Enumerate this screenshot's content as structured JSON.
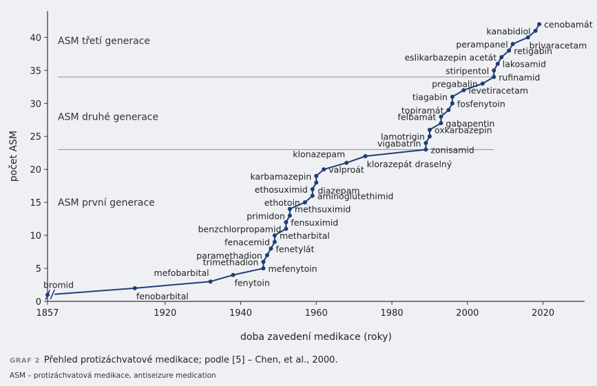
{
  "caption": {
    "label": "GRAF 2",
    "text": "Přehled protizáchvatové medikace; podle [5] – Chen, et al., 2000."
  },
  "note": "ASM – protizáchvatová medikace, antiseizure medication",
  "chart_data": {
    "type": "line",
    "xlabel": "doba zavedení medikace (roky)",
    "ylabel": "počet ASM",
    "xlim": [
      1857,
      2031
    ],
    "ylim": [
      0,
      44
    ],
    "xticks": [
      1857,
      1920,
      1940,
      1960,
      1980,
      2000,
      2020
    ],
    "yticks": [
      0,
      5,
      10,
      15,
      20,
      25,
      30,
      35,
      40
    ],
    "axis_break_after": 1857,
    "grid": false,
    "colors": {
      "line": "#1f3d73",
      "divider": "#8c8c8c",
      "text": "#222222"
    },
    "generations": [
      {
        "label": "ASM první generace",
        "y_text": 15
      },
      {
        "label": "ASM druhé generace",
        "y_text": 28,
        "divider_y": 23
      },
      {
        "label": "ASM třetí generace",
        "y_text": 39.5,
        "divider_y": 34
      }
    ],
    "points": [
      {
        "name": "bromid",
        "x": 1857,
        "y": 1,
        "side": "above"
      },
      {
        "name": "fenobarbital",
        "x": 1912,
        "y": 2,
        "side": "right-below"
      },
      {
        "name": "mefobarbital",
        "x": 1932,
        "y": 3,
        "side": "above-left"
      },
      {
        "name": "fenytoin",
        "x": 1938,
        "y": 4,
        "side": "right-below"
      },
      {
        "name": "mefenytoin",
        "x": 1946,
        "y": 5,
        "side": "right"
      },
      {
        "name": "trimethadion",
        "x": 1946,
        "y": 6,
        "side": "left"
      },
      {
        "name": "paramethadion",
        "x": 1947,
        "y": 7,
        "side": "left"
      },
      {
        "name": "fenetylát",
        "x": 1948,
        "y": 8,
        "side": "right"
      },
      {
        "name": "fenacemid",
        "x": 1949,
        "y": 9,
        "side": "left"
      },
      {
        "name": "metharbital",
        "x": 1949,
        "y": 10,
        "side": "right"
      },
      {
        "name": "benzchlorpropamid",
        "x": 1952,
        "y": 11,
        "side": "left"
      },
      {
        "name": "fensuximid",
        "x": 1952,
        "y": 12,
        "side": "right"
      },
      {
        "name": "primidon",
        "x": 1953,
        "y": 13,
        "side": "left"
      },
      {
        "name": "methsuximid",
        "x": 1953,
        "y": 14,
        "side": "right"
      },
      {
        "name": "ethotoin",
        "x": 1957,
        "y": 15,
        "side": "left"
      },
      {
        "name": "aminoglutethimid",
        "x": 1959,
        "y": 16,
        "side": "right"
      },
      {
        "name": "ethosuximid",
        "x": 1959,
        "y": 17,
        "side": "left"
      },
      {
        "name": "diazepam",
        "x": 1960,
        "y": 18,
        "side": "right-below"
      },
      {
        "name": "karbamazepin",
        "x": 1960,
        "y": 19,
        "side": "left"
      },
      {
        "name": "valproát",
        "x": 1962,
        "y": 20,
        "side": "right"
      },
      {
        "name": "klonazepam",
        "x": 1968,
        "y": 21,
        "side": "above-left"
      },
      {
        "name": "klorazepát draselný",
        "x": 1973,
        "y": 22,
        "side": "right-below"
      },
      {
        "name": "zonisamid",
        "x": 1989,
        "y": 23,
        "side": "right"
      },
      {
        "name": "vigabatrin",
        "x": 1989,
        "y": 24,
        "side": "left"
      },
      {
        "name": "lamotrigin",
        "x": 1990,
        "y": 25,
        "side": "left"
      },
      {
        "name": "oxkarbazepin",
        "x": 1990,
        "y": 26,
        "side": "right"
      },
      {
        "name": "gabapentin",
        "x": 1993,
        "y": 27,
        "side": "right"
      },
      {
        "name": "felbamát",
        "x": 1993,
        "y": 28,
        "side": "left"
      },
      {
        "name": "topiramát",
        "x": 1995,
        "y": 29,
        "side": "left"
      },
      {
        "name": "fosfenytoin",
        "x": 1996,
        "y": 30,
        "side": "right"
      },
      {
        "name": "tiagabin",
        "x": 1996,
        "y": 31,
        "side": "left"
      },
      {
        "name": "levetiracetam",
        "x": 1999,
        "y": 32,
        "side": "right"
      },
      {
        "name": "pregabalin",
        "x": 2004,
        "y": 33,
        "side": "left"
      },
      {
        "name": "rufinamid",
        "x": 2007,
        "y": 34,
        "side": "right"
      },
      {
        "name": "stiripentol",
        "x": 2007,
        "y": 35,
        "side": "left"
      },
      {
        "name": "lakosamid",
        "x": 2008,
        "y": 36,
        "side": "right"
      },
      {
        "name": "eslikarbazepin acetát",
        "x": 2009,
        "y": 37,
        "side": "left"
      },
      {
        "name": "retigabin",
        "x": 2011,
        "y": 38,
        "side": "right"
      },
      {
        "name": "perampanel",
        "x": 2012,
        "y": 39,
        "side": "left"
      },
      {
        "name": "brivaracetam",
        "x": 2016,
        "y": 40,
        "side": "right-below"
      },
      {
        "name": "kanabidiol",
        "x": 2018,
        "y": 41,
        "side": "left"
      },
      {
        "name": "cenobamát",
        "x": 2019,
        "y": 42,
        "side": "right"
      }
    ]
  }
}
